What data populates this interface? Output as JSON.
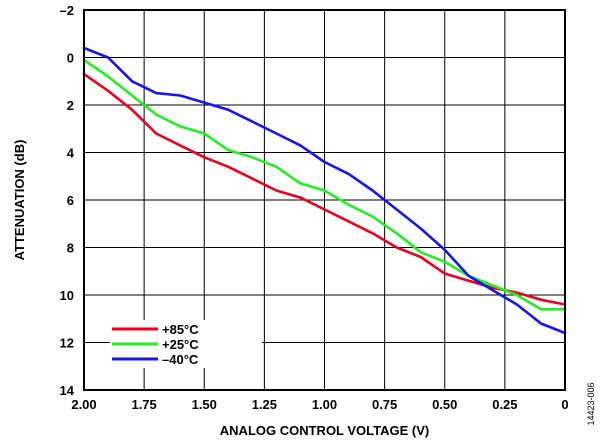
{
  "chart_data": {
    "type": "line",
    "title": "",
    "xlabel": "ANALOG CONTROL VOLTAGE (V)",
    "ylabel": "ATTENUATION (dB)",
    "x_reversed": true,
    "y_inverted": true,
    "xlim": [
      2.0,
      0.0
    ],
    "ylim": [
      -2,
      14
    ],
    "x_ticks": [
      2.0,
      1.75,
      1.5,
      1.25,
      1.0,
      0.75,
      0.5,
      0.25,
      0
    ],
    "x_tick_labels": [
      "2.00",
      "1.75",
      "1.50",
      "1.25",
      "1.00",
      "0.75",
      "0.50",
      "0.25",
      "0"
    ],
    "y_ticks": [
      -2,
      0,
      2,
      4,
      6,
      8,
      10,
      12,
      14
    ],
    "y_tick_labels": [
      "–2",
      "0",
      "2",
      "4",
      "6",
      "8",
      "10",
      "12",
      "14"
    ],
    "grid": true,
    "legend_position": "bottom-left",
    "series": [
      {
        "name": "+85°C",
        "color": "#e8001c",
        "x": [
          2.0,
          1.9,
          1.8,
          1.7,
          1.6,
          1.5,
          1.4,
          1.3,
          1.2,
          1.1,
          1.0,
          0.9,
          0.8,
          0.7,
          0.6,
          0.5,
          0.4,
          0.3,
          0.2,
          0.1,
          0.0
        ],
        "y": [
          0.7,
          1.4,
          2.2,
          3.2,
          3.7,
          4.2,
          4.6,
          5.1,
          5.6,
          5.9,
          6.4,
          6.9,
          7.4,
          8.0,
          8.4,
          9.1,
          9.4,
          9.7,
          9.9,
          10.2,
          10.4
        ]
      },
      {
        "name": "+25°C",
        "color": "#22ee22",
        "x": [
          2.0,
          1.9,
          1.8,
          1.7,
          1.6,
          1.5,
          1.4,
          1.3,
          1.2,
          1.1,
          1.0,
          0.9,
          0.8,
          0.7,
          0.6,
          0.5,
          0.4,
          0.3,
          0.2,
          0.1,
          0.0
        ],
        "y": [
          0.1,
          0.8,
          1.6,
          2.4,
          2.9,
          3.2,
          3.9,
          4.2,
          4.6,
          5.3,
          5.6,
          6.2,
          6.7,
          7.4,
          8.2,
          8.6,
          9.2,
          9.6,
          10.0,
          10.6,
          10.6
        ]
      },
      {
        "name": "–40°C",
        "color": "#1515ee",
        "x": [
          2.0,
          1.9,
          1.8,
          1.7,
          1.6,
          1.5,
          1.4,
          1.3,
          1.2,
          1.1,
          1.0,
          0.9,
          0.8,
          0.7,
          0.6,
          0.5,
          0.4,
          0.3,
          0.2,
          0.1,
          0.0
        ],
        "y": [
          -0.4,
          0.0,
          1.0,
          1.5,
          1.6,
          1.9,
          2.2,
          2.7,
          3.2,
          3.7,
          4.4,
          4.9,
          5.6,
          6.4,
          7.2,
          8.1,
          9.2,
          9.8,
          10.4,
          11.2,
          11.6
        ]
      }
    ]
  },
  "side_note": "14423-006"
}
